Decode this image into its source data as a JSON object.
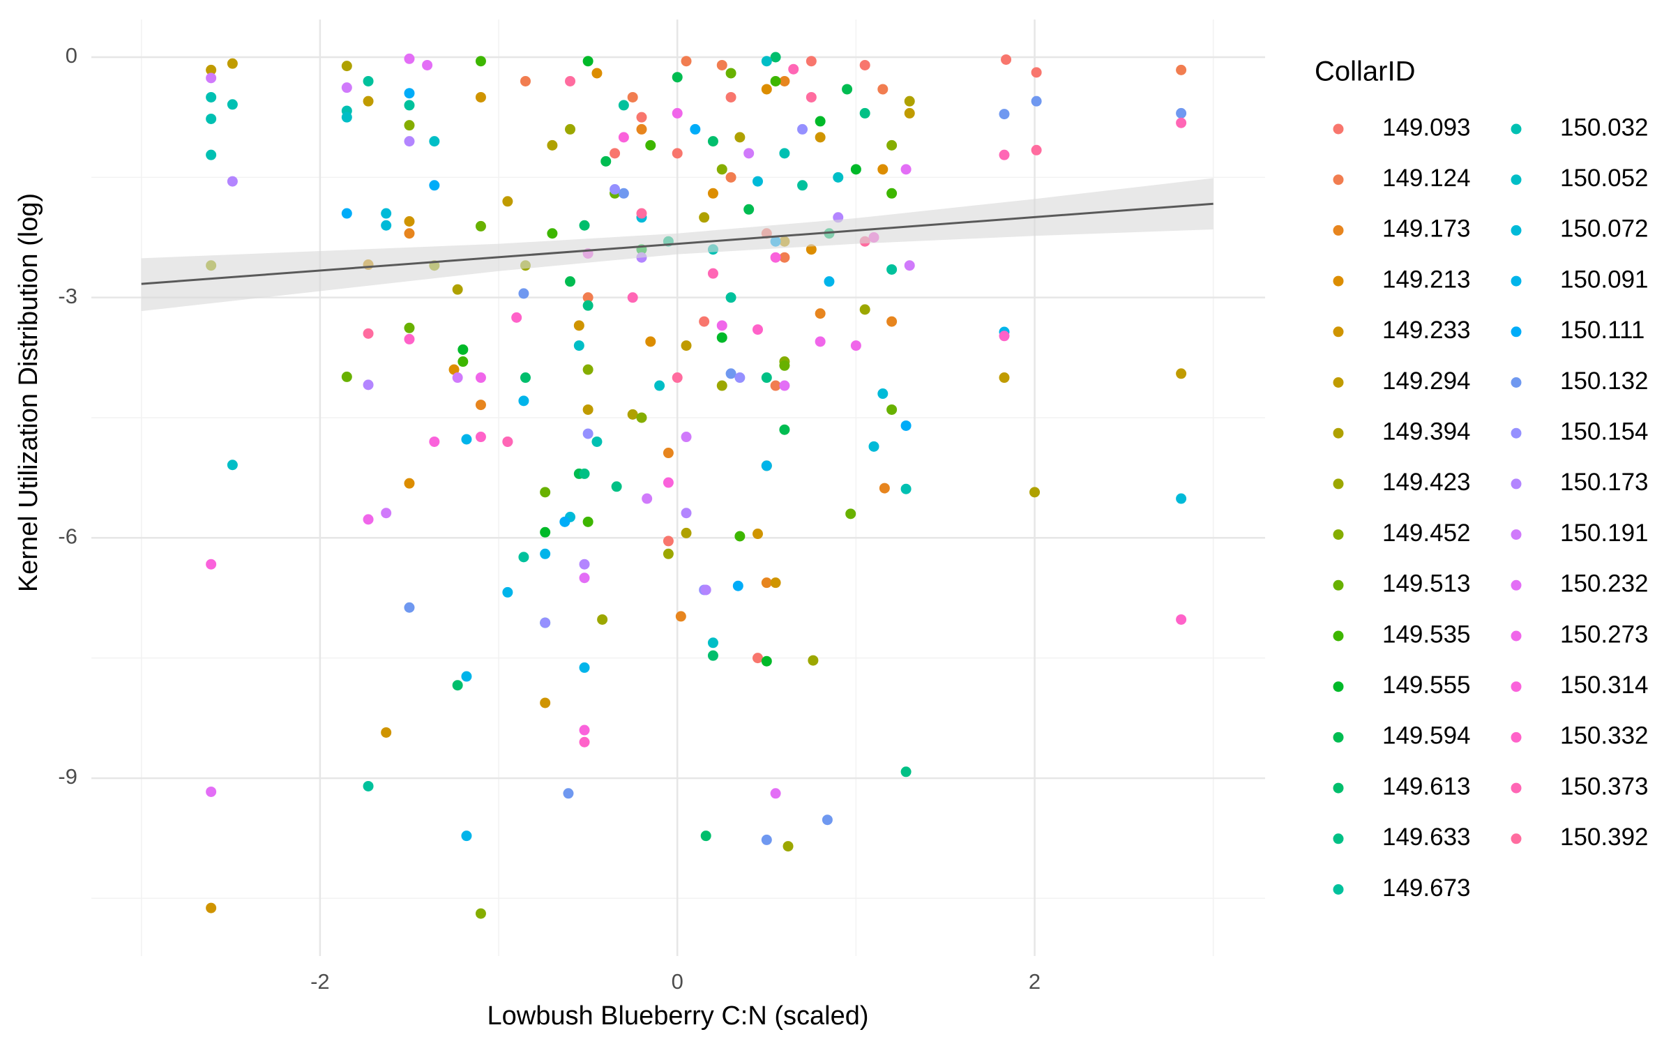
{
  "chart_data": {
    "type": "scatter",
    "x_label": "Lowbush Blueberry C:N (scaled)",
    "y_label": "Kernel Utilization Distribution (log)",
    "legend_title": "CollarID",
    "legend_position": "right",
    "grid": true,
    "xlim": [
      -3.28,
      3.29
    ],
    "ylim": [
      -11.22,
      0.47
    ],
    "xticks": [
      -2,
      0,
      2
    ],
    "yticks": [
      -9,
      -6,
      -3,
      0
    ],
    "x_minor_grid": [
      -3,
      -1,
      1,
      3
    ],
    "y_minor_grid": [
      -10.5,
      -7.5,
      -4.5,
      -1.5
    ],
    "trend": {
      "color": "#595959",
      "band_color": "#d9d9d9",
      "x": [
        -3,
        3
      ],
      "y": [
        -2.83,
        -1.83
      ],
      "band_x": [
        -3,
        -2,
        -1,
        0,
        1,
        2,
        3
      ],
      "band_lower": [
        -3.17,
        -2.92,
        -2.67,
        -2.46,
        -2.33,
        -2.23,
        -2.15
      ],
      "band_upper": [
        -2.51,
        -2.42,
        -2.33,
        -2.2,
        -2.01,
        -1.77,
        -1.51
      ]
    },
    "series": [
      {
        "name": "149.093",
        "color": "#F8766D",
        "x": [
          1.84,
          2.01,
          0.0,
          -0.2,
          0.3,
          0.75,
          0.5,
          -0.05,
          0.45,
          -0.35,
          0.15,
          1.05
        ],
        "values": [
          -0.03,
          -0.19,
          -1.2,
          -0.75,
          -0.5,
          -0.05,
          -2.2,
          -6.04,
          -7.5,
          -1.2,
          -3.3,
          -0.1
        ]
      },
      {
        "name": "149.124",
        "color": "#F17D50",
        "x": [
          2.82,
          0.05,
          -0.25,
          0.3,
          0.6,
          -0.5,
          0.55,
          1.15,
          -0.85,
          0.25
        ],
        "values": [
          -0.16,
          -0.05,
          -0.5,
          -1.5,
          -2.5,
          -3.0,
          -4.1,
          -0.4,
          -0.3,
          -0.1
        ]
      },
      {
        "name": "149.173",
        "color": "#E7851E",
        "x": [
          0.02,
          0.5,
          -1.1,
          1.16,
          -0.05,
          -1.5,
          0.8,
          -0.2,
          0.6,
          1.2
        ],
        "values": [
          -6.98,
          -6.56,
          -4.34,
          -5.38,
          -4.94,
          -2.2,
          -3.2,
          -0.9,
          -0.3,
          -3.3
        ]
      },
      {
        "name": "149.213",
        "color": "#DC8D00",
        "x": [
          -1.5,
          0.5,
          -0.15,
          -0.45,
          1.15,
          0.75,
          -1.25,
          0.2
        ],
        "values": [
          -5.32,
          -0.4,
          -3.55,
          -0.2,
          -1.4,
          -2.4,
          -3.9,
          -1.7
        ]
      },
      {
        "name": "149.233",
        "color": "#CF9400",
        "x": [
          -2.61,
          -1.63,
          -0.74,
          -1.73,
          -1.5,
          -0.55,
          0.55,
          0.45,
          -1.1,
          0.8
        ],
        "values": [
          -10.62,
          -8.43,
          -8.06,
          -2.59,
          -2.05,
          -3.35,
          -6.56,
          -5.95,
          -0.5,
          -1.0
        ]
      },
      {
        "name": "149.294",
        "color": "#C09B00",
        "x": [
          2.82,
          1.83,
          -2.61,
          -2.49,
          -1.73,
          -0.5,
          0.05,
          -0.95,
          1.3,
          0.6
        ],
        "values": [
          -3.95,
          -4.0,
          -0.16,
          -0.08,
          -0.55,
          -4.4,
          -3.6,
          -1.8,
          -0.7,
          -2.3
        ]
      },
      {
        "name": "149.394",
        "color": "#AFA100",
        "x": [
          2.0,
          -1.85,
          -1.23,
          -0.25,
          0.05,
          0.15,
          -0.7,
          1.3,
          0.35
        ],
        "values": [
          -5.43,
          -0.11,
          -2.9,
          -4.46,
          -5.94,
          -2.0,
          -1.1,
          -0.55,
          -1.0
        ]
      },
      {
        "name": "149.423",
        "color": "#9CA700",
        "x": [
          0.62,
          0.76,
          -0.42,
          -0.05,
          -1.36,
          -2.61,
          -0.85,
          0.25,
          1.05,
          -0.6
        ],
        "values": [
          -9.85,
          -7.53,
          -7.02,
          -6.2,
          -2.6,
          -2.6,
          -2.6,
          -4.1,
          -3.15,
          -0.9
        ]
      },
      {
        "name": "149.452",
        "color": "#85AD00",
        "x": [
          -1.1,
          -1.5,
          -0.5,
          0.25,
          0.6,
          -0.2,
          1.2,
          0.5
        ],
        "values": [
          -10.69,
          -0.85,
          -3.9,
          -1.4,
          -3.8,
          -4.5,
          -1.1,
          -5.1
        ]
      },
      {
        "name": "149.513",
        "color": "#68B100",
        "x": [
          -1.85,
          -1.5,
          -1.1,
          -0.74,
          0.97,
          0.6,
          -0.35,
          0.3,
          1.2
        ],
        "values": [
          -3.99,
          -3.38,
          -2.11,
          -5.43,
          -5.7,
          -3.85,
          -1.7,
          -0.2,
          -4.4
        ]
      },
      {
        "name": "149.535",
        "color": "#3DB600",
        "x": [
          -1.1,
          -0.5,
          -0.7,
          0.35,
          1.2,
          -0.15,
          0.55,
          -1.2
        ],
        "values": [
          -0.05,
          -5.8,
          -2.2,
          -5.98,
          -1.7,
          -1.1,
          -0.3,
          -3.8
        ]
      },
      {
        "name": "149.555",
        "color": "#00B929",
        "x": [
          -0.74,
          0.5,
          -1.2,
          -0.2,
          0.8,
          -0.5,
          0.25,
          1.0
        ],
        "values": [
          -5.93,
          -7.54,
          -3.65,
          -2.4,
          -0.8,
          -0.05,
          -3.5,
          -1.4
        ]
      },
      {
        "name": "149.594",
        "color": "#00BC51",
        "x": [
          -0.55,
          -0.6,
          0.4,
          0.95,
          -0.4,
          0.6,
          0.0
        ],
        "values": [
          -5.2,
          -2.8,
          -1.9,
          -0.4,
          -1.3,
          -4.65,
          -0.25
        ]
      },
      {
        "name": "149.613",
        "color": "#00BE6C",
        "x": [
          0.16,
          -1.23,
          0.2,
          -0.52,
          0.55,
          -0.85,
          0.85,
          0.2
        ],
        "values": [
          -9.72,
          -7.84,
          -7.47,
          -2.1,
          0.0,
          -4.0,
          -2.2,
          -1.05
        ]
      },
      {
        "name": "149.633",
        "color": "#00C085",
        "x": [
          1.28,
          -0.74,
          -0.34,
          -0.52,
          -0.5,
          0.5,
          1.05,
          -0.05
        ],
        "values": [
          -8.92,
          -7.06,
          -5.36,
          -5.2,
          -3.1,
          -4.0,
          -0.7,
          -2.3
        ]
      },
      {
        "name": "149.673",
        "color": "#00C19C",
        "x": [
          -1.73,
          -0.86,
          -1.73,
          -1.5,
          0.3,
          0.7,
          -0.3,
          1.2
        ],
        "values": [
          -9.1,
          -6.24,
          -0.3,
          -0.6,
          -3.0,
          -1.6,
          -0.6,
          -2.65
        ]
      },
      {
        "name": "150.032",
        "color": "#00C0B2",
        "x": [
          -2.61,
          -2.61,
          -2.49,
          -2.61,
          1.28,
          -1.85,
          0.2,
          0.6,
          -0.45
        ],
        "values": [
          -0.5,
          -0.77,
          -0.59,
          -1.22,
          -5.39,
          -0.67,
          -2.4,
          -1.2,
          -4.8
        ]
      },
      {
        "name": "150.052",
        "color": "#00BEC6",
        "x": [
          -2.49,
          -1.85,
          -1.36,
          0.5,
          -0.1,
          0.9,
          0.2,
          -0.55
        ],
        "values": [
          -5.09,
          -0.75,
          -1.05,
          -0.05,
          -4.1,
          -1.5,
          -7.31,
          -3.6
        ]
      },
      {
        "name": "150.072",
        "color": "#00BAD8",
        "x": [
          2.82,
          -1.63,
          -1.63,
          -0.6,
          0.45,
          1.1,
          -0.2,
          1.15
        ],
        "values": [
          -5.51,
          -1.95,
          -2.1,
          -5.74,
          -1.55,
          -4.86,
          -2.0,
          -4.2
        ]
      },
      {
        "name": "150.091",
        "color": "#00B4EA",
        "x": [
          -1.18,
          -1.18,
          -0.52,
          -1.18,
          -0.95,
          -0.86,
          1.83,
          0.5,
          -0.74,
          0.85
        ],
        "values": [
          -9.72,
          -7.73,
          -7.62,
          -4.77,
          -6.68,
          -4.29,
          -3.43,
          -5.1,
          -6.2,
          -2.8
        ]
      },
      {
        "name": "150.111",
        "color": "#00ACF8",
        "x": [
          -1.85,
          -1.36,
          0.34,
          -0.63,
          1.28,
          0.1,
          -1.5,
          0.55
        ],
        "values": [
          -1.95,
          -1.6,
          -6.6,
          -5.8,
          -4.6,
          -0.9,
          -0.45,
          -2.3
        ]
      },
      {
        "name": "150.132",
        "color": "#6F98F0",
        "x": [
          -0.61,
          0.5,
          0.84,
          -1.5,
          2.82,
          1.83,
          2.01,
          -0.86,
          0.3,
          -0.3
        ],
        "values": [
          -9.19,
          -9.77,
          -9.52,
          -6.87,
          -0.7,
          -0.71,
          -0.55,
          -2.95,
          -3.95,
          -1.7
        ]
      },
      {
        "name": "150.154",
        "color": "#9590FF",
        "x": [
          -0.74,
          0.35,
          -0.35,
          0.15,
          -0.5,
          0.7
        ],
        "values": [
          -7.06,
          -4.0,
          -1.65,
          -6.65,
          -4.7,
          -0.9
        ]
      },
      {
        "name": "150.173",
        "color": "#B385FF",
        "x": [
          -2.49,
          -1.5,
          -1.73,
          0.05,
          0.16,
          -0.2,
          0.9,
          -0.52
        ],
        "values": [
          -1.55,
          -1.05,
          -4.09,
          -5.69,
          -6.65,
          -2.5,
          -2.0,
          -6.33
        ]
      },
      {
        "name": "150.191",
        "color": "#D07AFB",
        "x": [
          -2.61,
          -1.85,
          -1.63,
          -1.23,
          -0.17,
          0.05,
          1.3,
          0.4
        ],
        "values": [
          -0.26,
          -0.38,
          -5.69,
          -4.0,
          -5.51,
          -4.74,
          -2.6,
          -1.2
        ]
      },
      {
        "name": "150.232",
        "color": "#E36EF6",
        "x": [
          -2.61,
          0.55,
          -1.5,
          -1.4,
          -0.52,
          0.6,
          1.28,
          -0.95
        ],
        "values": [
          -9.17,
          -9.19,
          -0.02,
          -0.1,
          -6.5,
          -4.1,
          -1.4,
          -4.8
        ]
      },
      {
        "name": "150.273",
        "color": "#F066EA",
        "x": [
          -1.73,
          -1.1,
          0.25,
          0.8,
          -0.5,
          0.0,
          1.0
        ],
        "values": [
          -5.77,
          -4.0,
          -3.35,
          -3.55,
          -2.45,
          -0.7,
          -3.6
        ]
      },
      {
        "name": "150.314",
        "color": "#FA62DB",
        "x": [
          -2.61,
          -1.36,
          -0.52,
          -0.05,
          0.55,
          -0.3,
          1.1
        ],
        "values": [
          -6.33,
          -4.8,
          -8.4,
          -5.31,
          -2.5,
          -1.0,
          -2.25
        ]
      },
      {
        "name": "150.332",
        "color": "#FF62C9",
        "x": [
          2.82,
          1.83,
          -1.5,
          -0.52,
          -1.1,
          0.45,
          -0.9
        ],
        "values": [
          -7.02,
          -3.48,
          -3.52,
          -8.55,
          -4.74,
          -3.4,
          -3.25
        ]
      },
      {
        "name": "150.373",
        "color": "#FF66B5",
        "x": [
          2.82,
          1.83,
          -0.95,
          0.65,
          -0.25,
          0.2
        ],
        "values": [
          -0.82,
          -1.22,
          -4.8,
          -0.15,
          -3.0,
          -2.7
        ]
      },
      {
        "name": "150.392",
        "color": "#FF6C9F",
        "x": [
          2.01,
          -1.73,
          0.0,
          -0.6,
          0.75,
          -0.2,
          1.05
        ],
        "values": [
          -1.16,
          -3.45,
          -4.0,
          -0.3,
          -0.5,
          -1.95,
          -2.3
        ]
      }
    ]
  }
}
